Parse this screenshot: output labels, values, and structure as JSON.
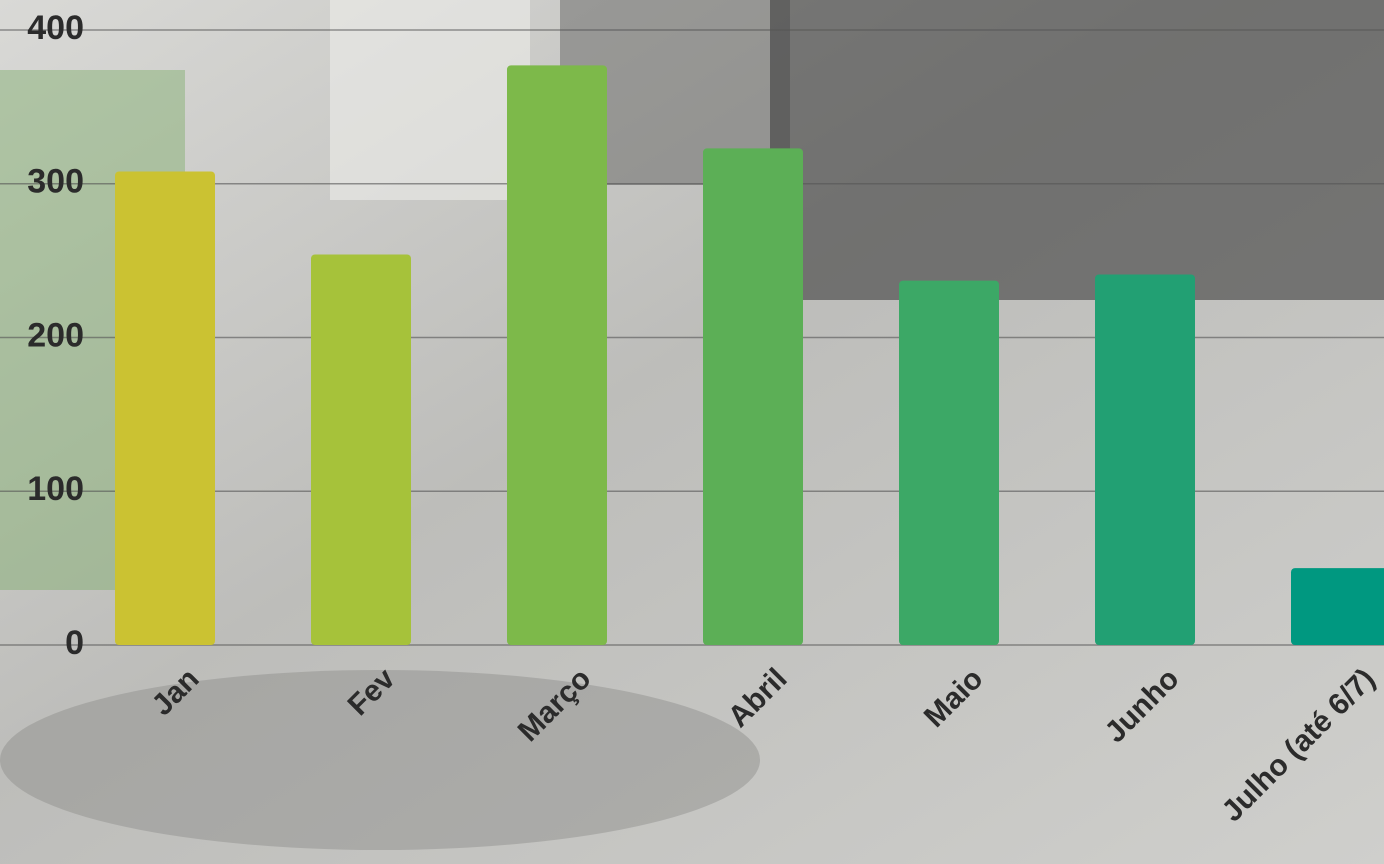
{
  "chart_data": {
    "type": "bar",
    "categories": [
      "Jan",
      "Fev",
      "Março",
      "Abril",
      "Maio",
      "Junho",
      "Julho (até 6/7)"
    ],
    "values": [
      308,
      254,
      377,
      323,
      237,
      241,
      50
    ],
    "colors": [
      "#cbc232",
      "#a6c23a",
      "#7db94a",
      "#5caf56",
      "#3ca866",
      "#22a073",
      "#009880"
    ],
    "ylim": [
      0,
      400
    ],
    "yticks": [
      0,
      100,
      200,
      300,
      400
    ],
    "grid": true
  }
}
